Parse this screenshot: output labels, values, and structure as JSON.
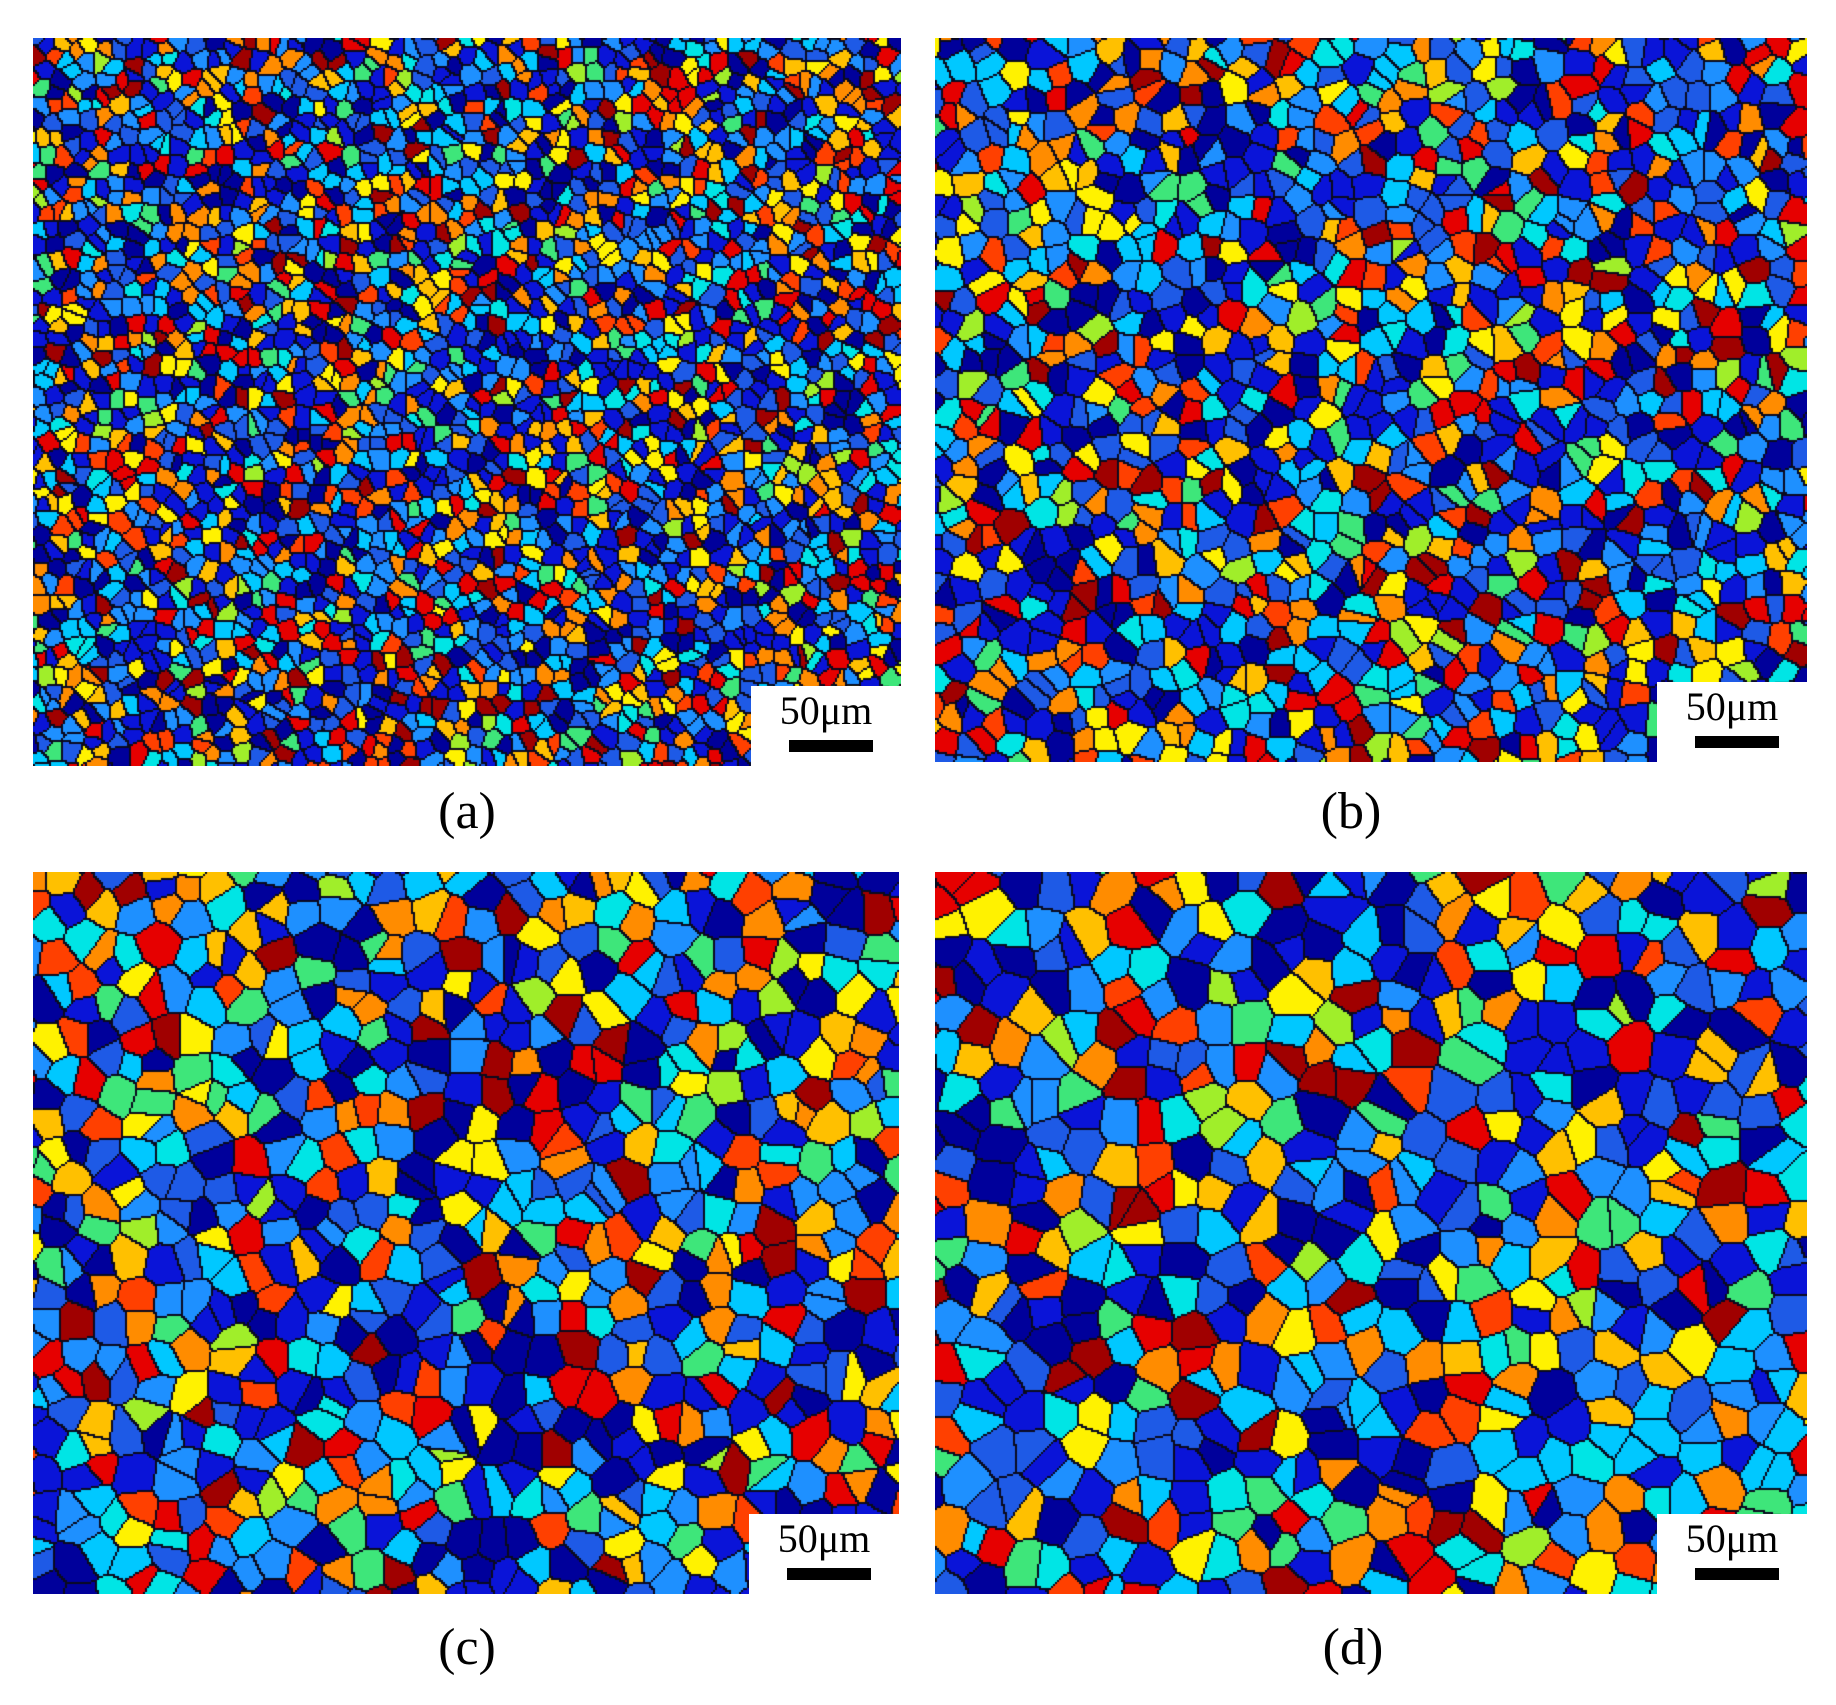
{
  "figure": {
    "panels": [
      {
        "id": "a",
        "caption": "(a)",
        "scale_label": "50μm",
        "grain_scale": 0.55
      },
      {
        "id": "b",
        "caption": "(b)",
        "scale_label": "50μm",
        "grain_scale": 0.8
      },
      {
        "id": "c",
        "caption": "(c)",
        "scale_label": "50μm",
        "grain_scale": 1.05
      },
      {
        "id": "d",
        "caption": "(d)",
        "scale_label": "50μm",
        "grain_scale": 1.2
      }
    ],
    "palette": [
      "#00009b",
      "#0a14d8",
      "#1e5ae6",
      "#1e90ff",
      "#00c8ff",
      "#00e5e5",
      "#3ee67a",
      "#a0ee2a",
      "#fff200",
      "#ffc000",
      "#ff8c00",
      "#ff4000",
      "#e60000",
      "#a00000"
    ]
  }
}
